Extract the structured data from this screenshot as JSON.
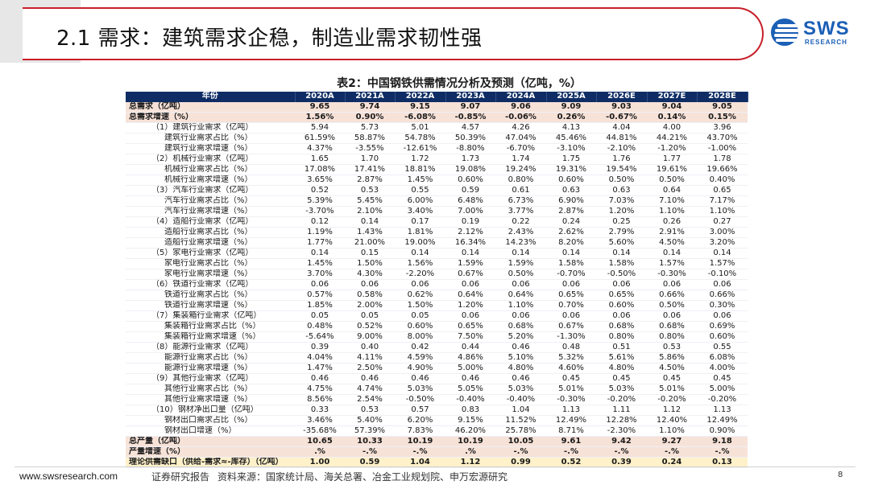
{
  "header": {
    "title": "2.1 需求：建筑需求企稳，制造业需求韧性强",
    "logo_text": "SWS",
    "logo_sub": "RESEARCH",
    "brand_color": "#c81f2a",
    "logo_color": "#1b5fb6"
  },
  "table": {
    "title": "表2：中国钢铁供需情况分析及预测（亿吨，%）",
    "header_color": "#0f2d64",
    "total_row_color": "#f7e2d8",
    "gap_row_color": "#fff1c9",
    "columns": [
      "年份",
      "2020A",
      "2021A",
      "2022A",
      "2023A",
      "2024A",
      "2025A",
      "2026E",
      "2027E",
      "2028E"
    ],
    "rows": [
      {
        "type": "total",
        "label": "总需求（亿吨）",
        "values": [
          "9.65",
          "9.74",
          "9.15",
          "9.07",
          "9.06",
          "9.09",
          "9.03",
          "9.04",
          "9.05"
        ]
      },
      {
        "type": "total",
        "label": "总需求增速（%）",
        "values": [
          "1.56%",
          "0.90%",
          "-6.08%",
          "-0.85%",
          "-0.06%",
          "0.26%",
          "-0.67%",
          "0.14%",
          "0.15%"
        ]
      },
      {
        "type": "sector",
        "label": "（1）建筑行业需求（亿吨）",
        "values": [
          "5.94",
          "5.73",
          "5.01",
          "4.57",
          "4.26",
          "4.13",
          "4.04",
          "4.00",
          "3.96"
        ]
      },
      {
        "type": "sub",
        "label": "建筑行业需求占比（%）",
        "values": [
          "61.59%",
          "58.87%",
          "54.78%",
          "50.39%",
          "47.04%",
          "45.46%",
          "44.81%",
          "44.21%",
          "43.70%"
        ]
      },
      {
        "type": "sub",
        "label": "建筑行业需求增速（%）",
        "values": [
          "4.37%",
          "-3.55%",
          "-12.61%",
          "-8.80%",
          "-6.70%",
          "-3.10%",
          "-2.10%",
          "-1.20%",
          "-1.00%"
        ]
      },
      {
        "type": "sector",
        "label": "（2）机械行业需求（亿吨）",
        "values": [
          "1.65",
          "1.70",
          "1.72",
          "1.73",
          "1.74",
          "1.75",
          "1.76",
          "1.77",
          "1.78"
        ]
      },
      {
        "type": "sub",
        "label": "机械行业需求占比（%）",
        "values": [
          "17.08%",
          "17.41%",
          "18.81%",
          "19.08%",
          "19.24%",
          "19.31%",
          "19.54%",
          "19.61%",
          "19.66%"
        ]
      },
      {
        "type": "sub",
        "label": "机械行业需求增速（%）",
        "values": [
          "3.65%",
          "2.87%",
          "1.45%",
          "0.60%",
          "0.80%",
          "0.60%",
          "0.50%",
          "0.50%",
          "0.40%"
        ]
      },
      {
        "type": "sector",
        "label": "（3）汽车行业需求（亿吨）",
        "values": [
          "0.52",
          "0.53",
          "0.55",
          "0.59",
          "0.61",
          "0.63",
          "0.63",
          "0.64",
          "0.65"
        ]
      },
      {
        "type": "sub",
        "label": "汽车行业需求占比（%）",
        "values": [
          "5.39%",
          "5.45%",
          "6.00%",
          "6.48%",
          "6.73%",
          "6.90%",
          "7.03%",
          "7.10%",
          "7.17%"
        ]
      },
      {
        "type": "sub",
        "label": "汽车行业需求增速（%）",
        "values": [
          "-3.70%",
          "2.10%",
          "3.40%",
          "7.00%",
          "3.77%",
          "2.87%",
          "1.20%",
          "1.10%",
          "1.10%"
        ]
      },
      {
        "type": "sector",
        "label": "（4）造船行业需求（亿吨）",
        "values": [
          "0.12",
          "0.14",
          "0.17",
          "0.19",
          "0.22",
          "0.24",
          "0.25",
          "0.26",
          "0.27"
        ]
      },
      {
        "type": "sub",
        "label": "造船行业需求占比（%）",
        "values": [
          "1.19%",
          "1.43%",
          "1.81%",
          "2.12%",
          "2.43%",
          "2.62%",
          "2.79%",
          "2.91%",
          "3.00%"
        ]
      },
      {
        "type": "sub",
        "label": "造船行业需求增速（%）",
        "values": [
          "1.77%",
          "21.00%",
          "19.00%",
          "16.34%",
          "14.23%",
          "8.20%",
          "5.60%",
          "4.50%",
          "3.20%"
        ]
      },
      {
        "type": "sector",
        "label": "（5）家电行业需求（亿吨）",
        "values": [
          "0.14",
          "0.15",
          "0.14",
          "0.14",
          "0.14",
          "0.14",
          "0.14",
          "0.14",
          "0.14"
        ]
      },
      {
        "type": "sub",
        "label": "家电行业需求占比（%）",
        "values": [
          "1.45%",
          "1.50%",
          "1.56%",
          "1.59%",
          "1.59%",
          "1.58%",
          "1.58%",
          "1.57%",
          "1.57%"
        ]
      },
      {
        "type": "sub",
        "label": "家电行业需求增速（%）",
        "values": [
          "3.70%",
          "4.30%",
          "-2.20%",
          "0.67%",
          "0.50%",
          "-0.70%",
          "-0.50%",
          "-0.30%",
          "-0.10%"
        ]
      },
      {
        "type": "sector",
        "label": "（6）铁道行业需求（亿吨）",
        "values": [
          "0.06",
          "0.06",
          "0.06",
          "0.06",
          "0.06",
          "0.06",
          "0.06",
          "0.06",
          "0.06"
        ]
      },
      {
        "type": "sub",
        "label": "铁道行业需求占比（%）",
        "values": [
          "0.57%",
          "0.58%",
          "0.62%",
          "0.64%",
          "0.64%",
          "0.65%",
          "0.65%",
          "0.66%",
          "0.66%"
        ]
      },
      {
        "type": "sub",
        "label": "铁道行业需求增速（%）",
        "values": [
          "1.85%",
          "2.00%",
          "1.50%",
          "1.20%",
          "1.10%",
          "0.70%",
          "0.60%",
          "0.50%",
          "0.30%"
        ]
      },
      {
        "type": "sector",
        "label": "（7）集装箱行业需求（亿吨）",
        "values": [
          "0.05",
          "0.05",
          "0.05",
          "0.06",
          "0.06",
          "0.06",
          "0.06",
          "0.06",
          "0.06"
        ]
      },
      {
        "type": "sub",
        "label": "集装箱行业需求占比（%）",
        "values": [
          "0.48%",
          "0.52%",
          "0.60%",
          "0.65%",
          "0.68%",
          "0.67%",
          "0.68%",
          "0.68%",
          "0.69%"
        ]
      },
      {
        "type": "sub",
        "label": "集装箱行业需求增速（%）",
        "values": [
          "-5.64%",
          "9.00%",
          "8.00%",
          "7.50%",
          "5.20%",
          "-1.30%",
          "0.80%",
          "0.80%",
          "0.60%"
        ]
      },
      {
        "type": "sector",
        "label": "（8）能源行业需求（亿吨）",
        "values": [
          "0.39",
          "0.40",
          "0.42",
          "0.44",
          "0.46",
          "0.48",
          "0.51",
          "0.53",
          "0.55"
        ]
      },
      {
        "type": "sub",
        "label": "能源行业需求占比（%）",
        "values": [
          "4.04%",
          "4.11%",
          "4.59%",
          "4.86%",
          "5.10%",
          "5.32%",
          "5.61%",
          "5.86%",
          "6.08%"
        ]
      },
      {
        "type": "sub",
        "label": "能源行业需求增速（%）",
        "values": [
          "1.47%",
          "2.50%",
          "4.90%",
          "5.00%",
          "4.80%",
          "4.60%",
          "4.80%",
          "4.50%",
          "4.00%"
        ]
      },
      {
        "type": "sector",
        "label": "（9）其他行业需求（亿吨）",
        "values": [
          "0.46",
          "0.46",
          "0.46",
          "0.46",
          "0.46",
          "0.45",
          "0.45",
          "0.45",
          "0.45"
        ]
      },
      {
        "type": "sub",
        "label": "其他行业需求占比（%）",
        "values": [
          "4.75%",
          "4.74%",
          "5.03%",
          "5.05%",
          "5.03%",
          "5.01%",
          "5.03%",
          "5.01%",
          "5.00%"
        ]
      },
      {
        "type": "sub",
        "label": "其他行业需求增速（%）",
        "values": [
          "8.56%",
          "2.54%",
          "-0.50%",
          "-0.40%",
          "-0.40%",
          "-0.30%",
          "-0.20%",
          "-0.20%",
          "-0.20%"
        ]
      },
      {
        "type": "sector",
        "label": "（10）钢材净出口量（亿吨）",
        "values": [
          "0.33",
          "0.53",
          "0.57",
          "0.83",
          "1.04",
          "1.13",
          "1.11",
          "1.12",
          "1.13"
        ]
      },
      {
        "type": "sub",
        "label": "钢材出口需求占比（%）",
        "values": [
          "3.46%",
          "5.40%",
          "6.20%",
          "9.15%",
          "11.52%",
          "12.49%",
          "12.28%",
          "12.40%",
          "12.49%"
        ]
      },
      {
        "type": "sub",
        "label": "钢材出口增速（%）",
        "values": [
          "-35.68%",
          "57.39%",
          "7.83%",
          "46.20%",
          "25.78%",
          "8.71%",
          "-2.30%",
          "1.10%",
          "0.90%"
        ]
      },
      {
        "type": "total",
        "label": "总产量（亿吨）",
        "values": [
          "10.65",
          "10.33",
          "10.19",
          "10.19",
          "10.05",
          "9.61",
          "9.42",
          "9.27",
          "9.18"
        ]
      },
      {
        "type": "total",
        "label": "产量增速（%）",
        "values": [
          ".%",
          "-.%",
          "-.%",
          ".%",
          "-.%",
          "-.%",
          "-.%",
          "-.%",
          "-.%"
        ]
      },
      {
        "type": "gap",
        "label": "理论供需缺口（供给-需求≈-库存）（亿吨）",
        "values": [
          "1.00",
          "0.59",
          "1.04",
          "1.12",
          "0.99",
          "0.52",
          "0.39",
          "0.24",
          "0.13"
        ]
      }
    ]
  },
  "footer": {
    "website": "www.swsresearch.com",
    "report_label": "证券研究报告",
    "source": "资料来源：国家统计局、海关总署、冶金工业规划院、申万宏源研究",
    "page_number": "8"
  }
}
